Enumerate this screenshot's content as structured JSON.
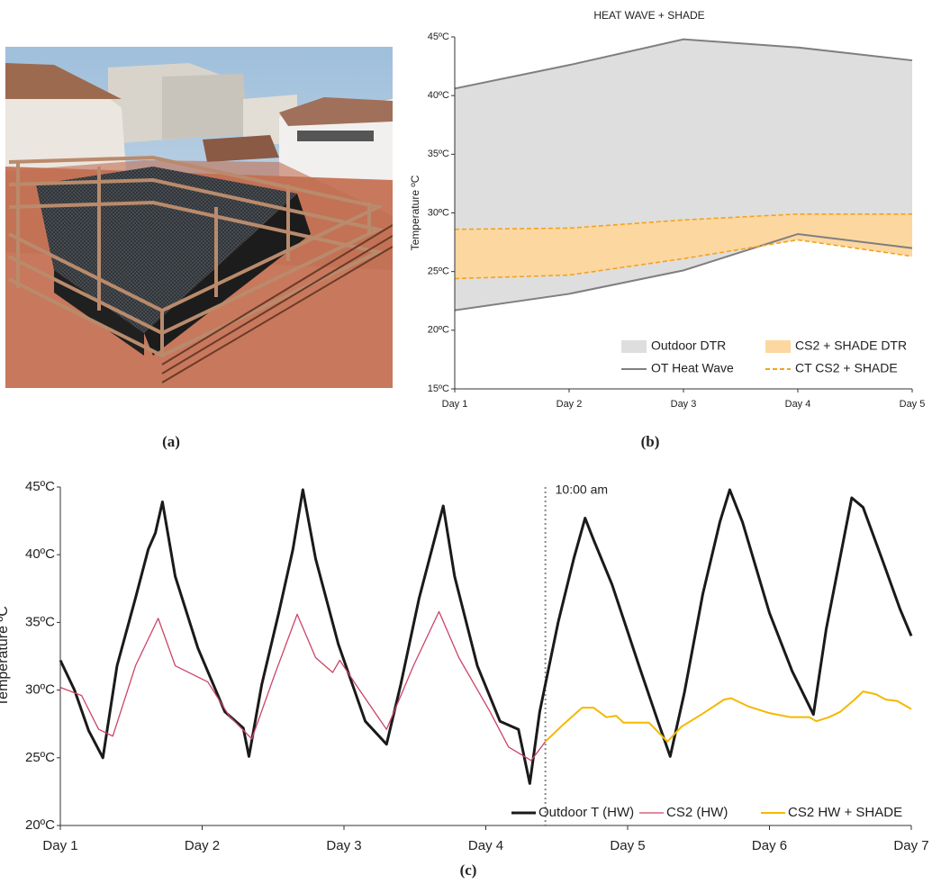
{
  "photo": {
    "caption": "(a)"
  },
  "chart_data": [
    {
      "type": "area",
      "title": "HEAT WAVE + SHADE",
      "ylabel": "Temperature ºC",
      "caption": "(b)",
      "categories": [
        "Day 1",
        "Day 2",
        "Day 3",
        "Day 4",
        "Day 5"
      ],
      "ylim": [
        15,
        45
      ],
      "yticks": [
        {
          "value": 15,
          "label": "15ºC"
        },
        {
          "value": 20,
          "label": "20ºC"
        },
        {
          "value": 25,
          "label": "25ºC"
        },
        {
          "value": 30,
          "label": "30ºC"
        },
        {
          "value": 35,
          "label": "35ºC"
        },
        {
          "value": 40,
          "label": "40ºC"
        },
        {
          "value": 45,
          "label": "45ºC"
        }
      ],
      "series": [
        {
          "name": "Outdoor DTR",
          "color": "#dedede",
          "low": [
            21.7,
            23.1,
            25.1,
            28.2,
            27.0
          ],
          "high": [
            40.6,
            42.6,
            44.8,
            44.1,
            43.0
          ],
          "edge": {
            "name": "OT Heat Wave",
            "color": "#7f7f7f",
            "dash": false
          }
        },
        {
          "name": "CS2 + SHADE DTR",
          "color": "#fcd7a0",
          "low": [
            24.4,
            24.7,
            26.1,
            27.7,
            26.3
          ],
          "high": [
            28.6,
            28.7,
            29.4,
            29.9,
            29.9
          ],
          "edge": {
            "name": "CT CS2 + SHADE",
            "color": "#f5a21a",
            "dash": true
          }
        }
      ]
    },
    {
      "type": "line",
      "ylabel": "Temperature ºC",
      "caption": "(c)",
      "xlim": [
        1,
        7
      ],
      "xticks": [
        {
          "value": 1,
          "label": "Day 1"
        },
        {
          "value": 2,
          "label": "Day 2"
        },
        {
          "value": 3,
          "label": "Day 3"
        },
        {
          "value": 4,
          "label": "Day 4"
        },
        {
          "value": 5,
          "label": "Day 5"
        },
        {
          "value": 6,
          "label": "Day 6"
        },
        {
          "value": 7,
          "label": "Day 7"
        }
      ],
      "ylim": [
        20,
        45
      ],
      "yticks": [
        {
          "value": 20,
          "label": "20ºC"
        },
        {
          "value": 25,
          "label": "25ºC"
        },
        {
          "value": 30,
          "label": "30ºC"
        },
        {
          "value": 35,
          "label": "35ºC"
        },
        {
          "value": 40,
          "label": "40ºC"
        },
        {
          "value": 45,
          "label": "45ºC"
        }
      ],
      "annotation": {
        "x": 4.42,
        "label": "10:00 am"
      },
      "series": [
        {
          "name": "Outdoor T (HW)",
          "color": "#1a1a1a",
          "line_width": 3,
          "x": [
            1.0,
            1.1,
            1.2,
            1.3,
            1.4,
            1.53,
            1.62,
            1.67,
            1.72,
            1.81,
            1.97,
            2.16,
            2.29,
            2.33,
            2.42,
            2.54,
            2.64,
            2.71,
            2.8,
            2.96,
            3.15,
            3.3,
            3.4,
            3.53,
            3.62,
            3.7,
            3.78,
            3.94,
            4.1,
            4.23,
            4.31,
            4.38,
            4.51,
            4.62,
            4.7,
            4.76,
            4.89,
            5.08,
            5.21,
            5.3,
            5.4,
            5.53,
            5.65,
            5.72,
            5.81,
            6.0,
            6.16,
            6.31,
            6.4,
            6.48,
            6.58,
            6.66,
            6.8,
            6.92,
            7.0
          ],
          "values": [
            32.2,
            30.0,
            27.0,
            25.0,
            31.8,
            36.8,
            40.4,
            41.6,
            43.9,
            38.4,
            33.1,
            28.4,
            27.2,
            25.1,
            30.4,
            35.7,
            40.4,
            44.8,
            39.7,
            33.4,
            27.7,
            26.0,
            30.4,
            36.8,
            40.4,
            43.6,
            38.4,
            31.8,
            27.7,
            27.1,
            23.1,
            28.4,
            35.0,
            39.7,
            42.7,
            41.1,
            37.8,
            31.8,
            27.8,
            25.1,
            29.8,
            37.1,
            42.4,
            44.8,
            42.4,
            35.7,
            31.4,
            28.2,
            34.5,
            38.8,
            44.2,
            43.5,
            39.5,
            36.0,
            34.0
          ]
        },
        {
          "name": "CS2 (HW)",
          "color": "#cc4466",
          "line_width": 1.3,
          "x": [
            1.0,
            1.15,
            1.27,
            1.37,
            1.53,
            1.69,
            1.81,
            2.04,
            2.19,
            2.35,
            2.51,
            2.67,
            2.8,
            2.92,
            2.97,
            3.11,
            3.3,
            3.49,
            3.67,
            3.81,
            4.03,
            4.16,
            4.32,
            4.42
          ],
          "values": [
            30.2,
            29.6,
            27.1,
            26.6,
            31.8,
            35.3,
            31.8,
            30.6,
            28.1,
            26.4,
            31.1,
            35.6,
            32.4,
            31.3,
            32.2,
            30.0,
            27.1,
            31.8,
            35.8,
            32.4,
            28.4,
            25.8,
            24.8,
            26.2
          ]
        },
        {
          "name": "CS2 HW + SHADE",
          "color": "#f5b800",
          "line_width": 2,
          "x": [
            4.42,
            4.55,
            4.68,
            4.76,
            4.85,
            4.92,
            4.97,
            5.15,
            5.28,
            5.38,
            5.52,
            5.68,
            5.73,
            5.85,
            6.0,
            6.15,
            6.28,
            6.33,
            6.42,
            6.5,
            6.6,
            6.66,
            6.75,
            6.82,
            6.9,
            7.0
          ],
          "values": [
            26.2,
            27.5,
            28.7,
            28.7,
            28.0,
            28.1,
            27.6,
            27.6,
            26.2,
            27.3,
            28.2,
            29.3,
            29.4,
            28.8,
            28.3,
            28.0,
            28.0,
            27.7,
            28.0,
            28.4,
            29.3,
            29.9,
            29.7,
            29.3,
            29.2,
            28.6
          ]
        }
      ]
    }
  ]
}
